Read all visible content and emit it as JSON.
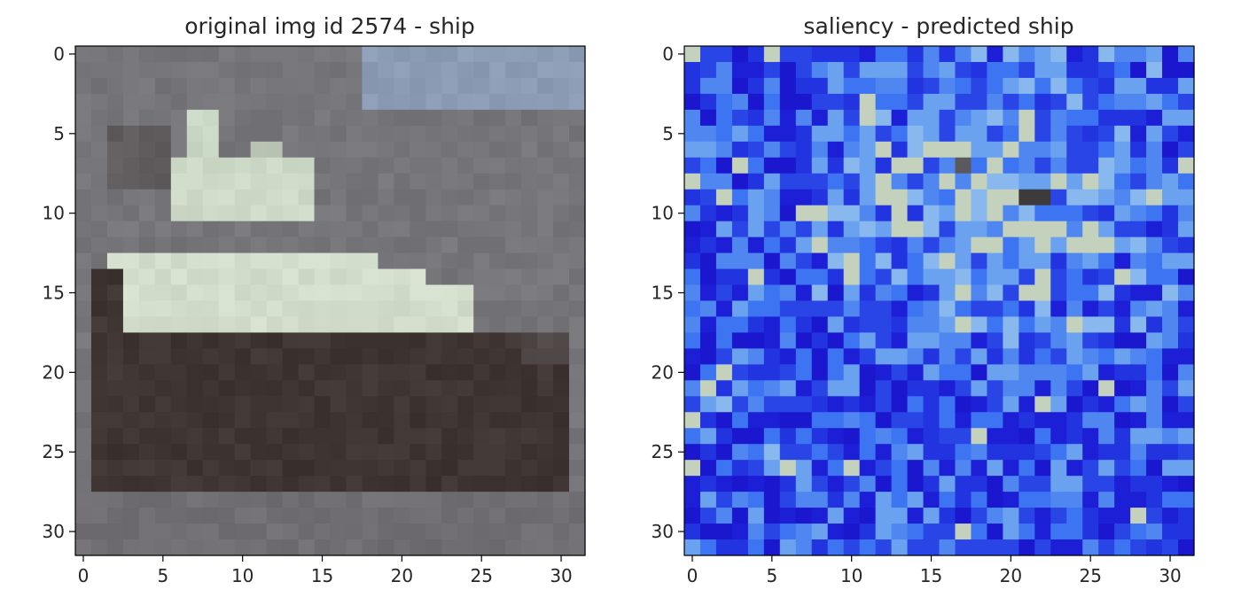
{
  "chart_data": [
    {
      "type": "heatmap",
      "title": "original img id 2574 - ship",
      "xlabel": "",
      "ylabel": "",
      "xlim": [
        -0.5,
        31.5
      ],
      "ylim": [
        31.5,
        -0.5
      ],
      "grid": false,
      "xticks": [
        0,
        5,
        10,
        15,
        20,
        25,
        30
      ],
      "yticks": [
        0,
        5,
        10,
        15,
        20,
        25,
        30
      ],
      "xtick_labels": [
        "0",
        "5",
        "10",
        "15",
        "20",
        "25",
        "30"
      ],
      "ytick_labels": [
        "0",
        "5",
        "10",
        "15",
        "20",
        "25",
        "30"
      ],
      "colors": {
        "dark_hull": "#3f3633",
        "gray_sea": "#77767a",
        "light_deck": "#d4e0cd",
        "sky_blue": "#8fa2be"
      }
    },
    {
      "type": "heatmap",
      "title": "saliency - predicted ship",
      "xlabel": "",
      "ylabel": "",
      "xlim": [
        -0.5,
        31.5
      ],
      "ylim": [
        31.5,
        -0.5
      ],
      "grid": false,
      "xticks": [
        0,
        5,
        10,
        15,
        20,
        25,
        30
      ],
      "yticks": [
        0,
        5,
        10,
        15,
        20,
        25,
        30
      ],
      "xtick_labels": [
        "0",
        "5",
        "10",
        "15",
        "20",
        "25",
        "30"
      ],
      "ytick_labels": [
        "0",
        "5",
        "10",
        "15",
        "20",
        "25",
        "30"
      ],
      "colors": {
        "low": "#1c1fd6",
        "mid": "#3d74f2",
        "high_blue": "#7fb4f0",
        "high": "#c4d2bd",
        "peak": "#3c3a3a"
      }
    }
  ]
}
